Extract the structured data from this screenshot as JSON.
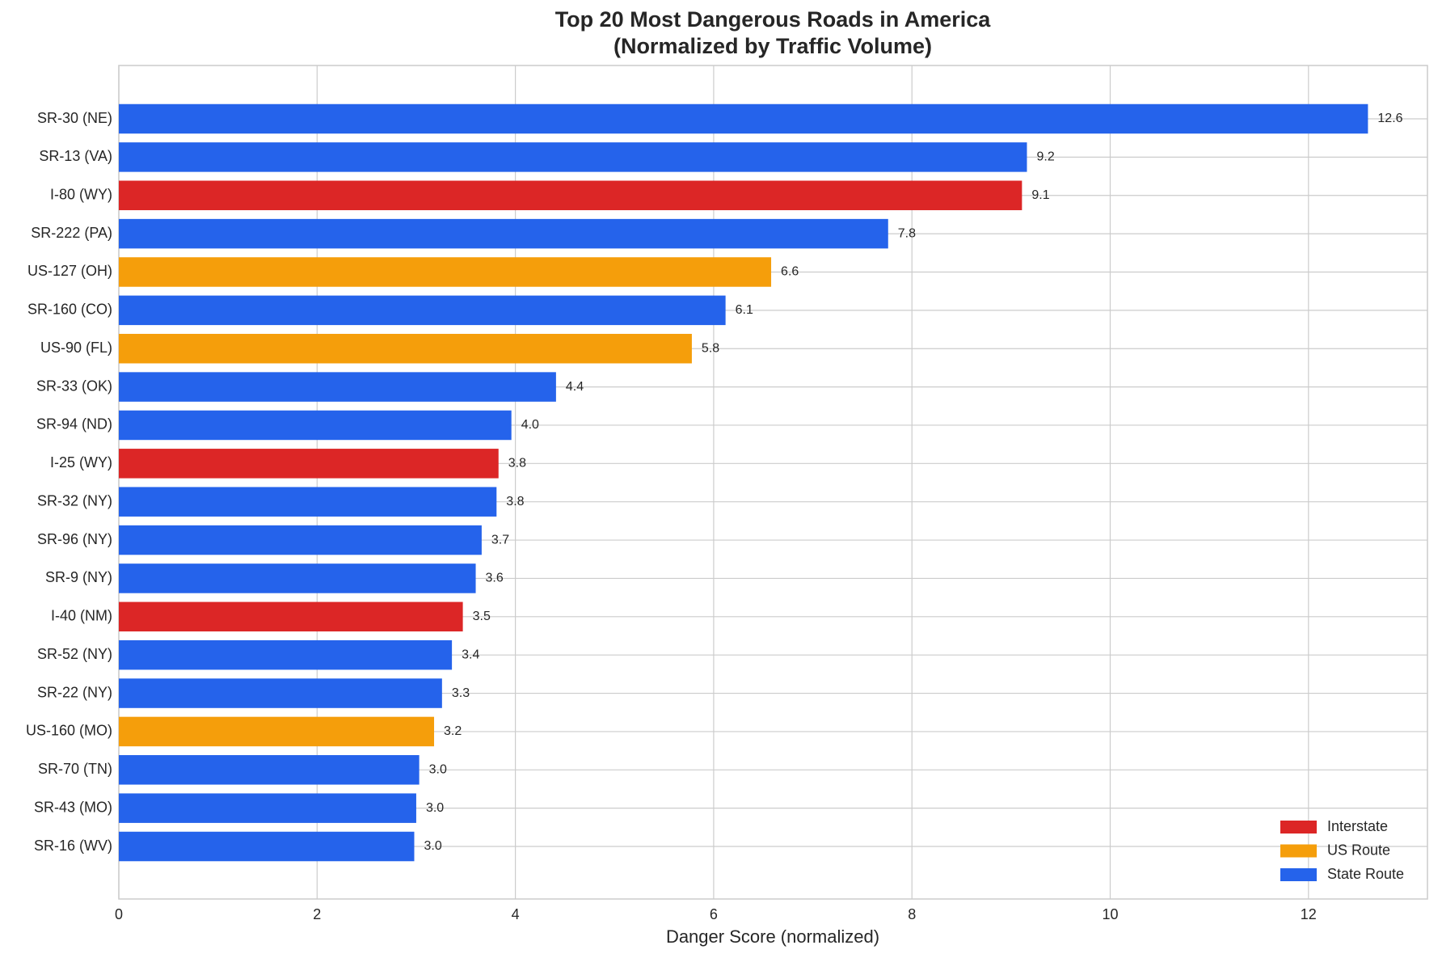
{
  "chart_data": {
    "type": "barh",
    "title": "Top 20 Most Dangerous Roads in America",
    "subtitle": "(Normalized by Traffic Volume)",
    "x_label": "Danger Score (normalized)",
    "categories": [
      "SR-30 (NE)",
      "SR-13 (VA)",
      "I-80 (WY)",
      "SR-222 (PA)",
      "US-127 (OH)",
      "SR-160 (CO)",
      "US-90 (FL)",
      "SR-33 (OK)",
      "SR-94 (ND)",
      "I-25 (WY)",
      "SR-32 (NY)",
      "SR-96 (NY)",
      "SR-9 (NY)",
      "I-40 (NM)",
      "SR-52 (NY)",
      "SR-22 (NY)",
      "US-160 (MO)",
      "SR-70 (TN)",
      "SR-43 (MO)",
      "SR-16 (WV)"
    ],
    "values": [
      12.6,
      9.16,
      9.11,
      7.76,
      6.58,
      6.12,
      5.78,
      4.41,
      3.96,
      3.83,
      3.81,
      3.66,
      3.6,
      3.47,
      3.36,
      3.26,
      3.18,
      3.03,
      3.0,
      2.98
    ],
    "value_labels": [
      "12.6",
      "9.2",
      "9.1",
      "7.8",
      "6.6",
      "6.1",
      "5.8",
      "4.4",
      "4.0",
      "3.8",
      "3.8",
      "3.7",
      "3.6",
      "3.5",
      "3.4",
      "3.3",
      "3.2",
      "3.0",
      "3.0",
      "3.0"
    ],
    "colors": [
      "#2563eb",
      "#2563eb",
      "#dc2626",
      "#2563eb",
      "#f59e0b",
      "#2563eb",
      "#f59e0b",
      "#2563eb",
      "#2563eb",
      "#dc2626",
      "#2563eb",
      "#2563eb",
      "#2563eb",
      "#dc2626",
      "#2563eb",
      "#2563eb",
      "#f59e0b",
      "#2563eb",
      "#2563eb",
      "#2563eb"
    ],
    "legend": [
      {
        "name": "Interstate",
        "color": "#dc2626"
      },
      {
        "name": "US Route",
        "color": "#f59e0b"
      },
      {
        "name": "State Route",
        "color": "#2563eb"
      }
    ],
    "legend_position": "lower right",
    "xlim": [
      0,
      13.2
    ],
    "xticks": [
      0,
      2,
      4,
      6,
      8,
      10,
      12
    ],
    "grid": true
  }
}
